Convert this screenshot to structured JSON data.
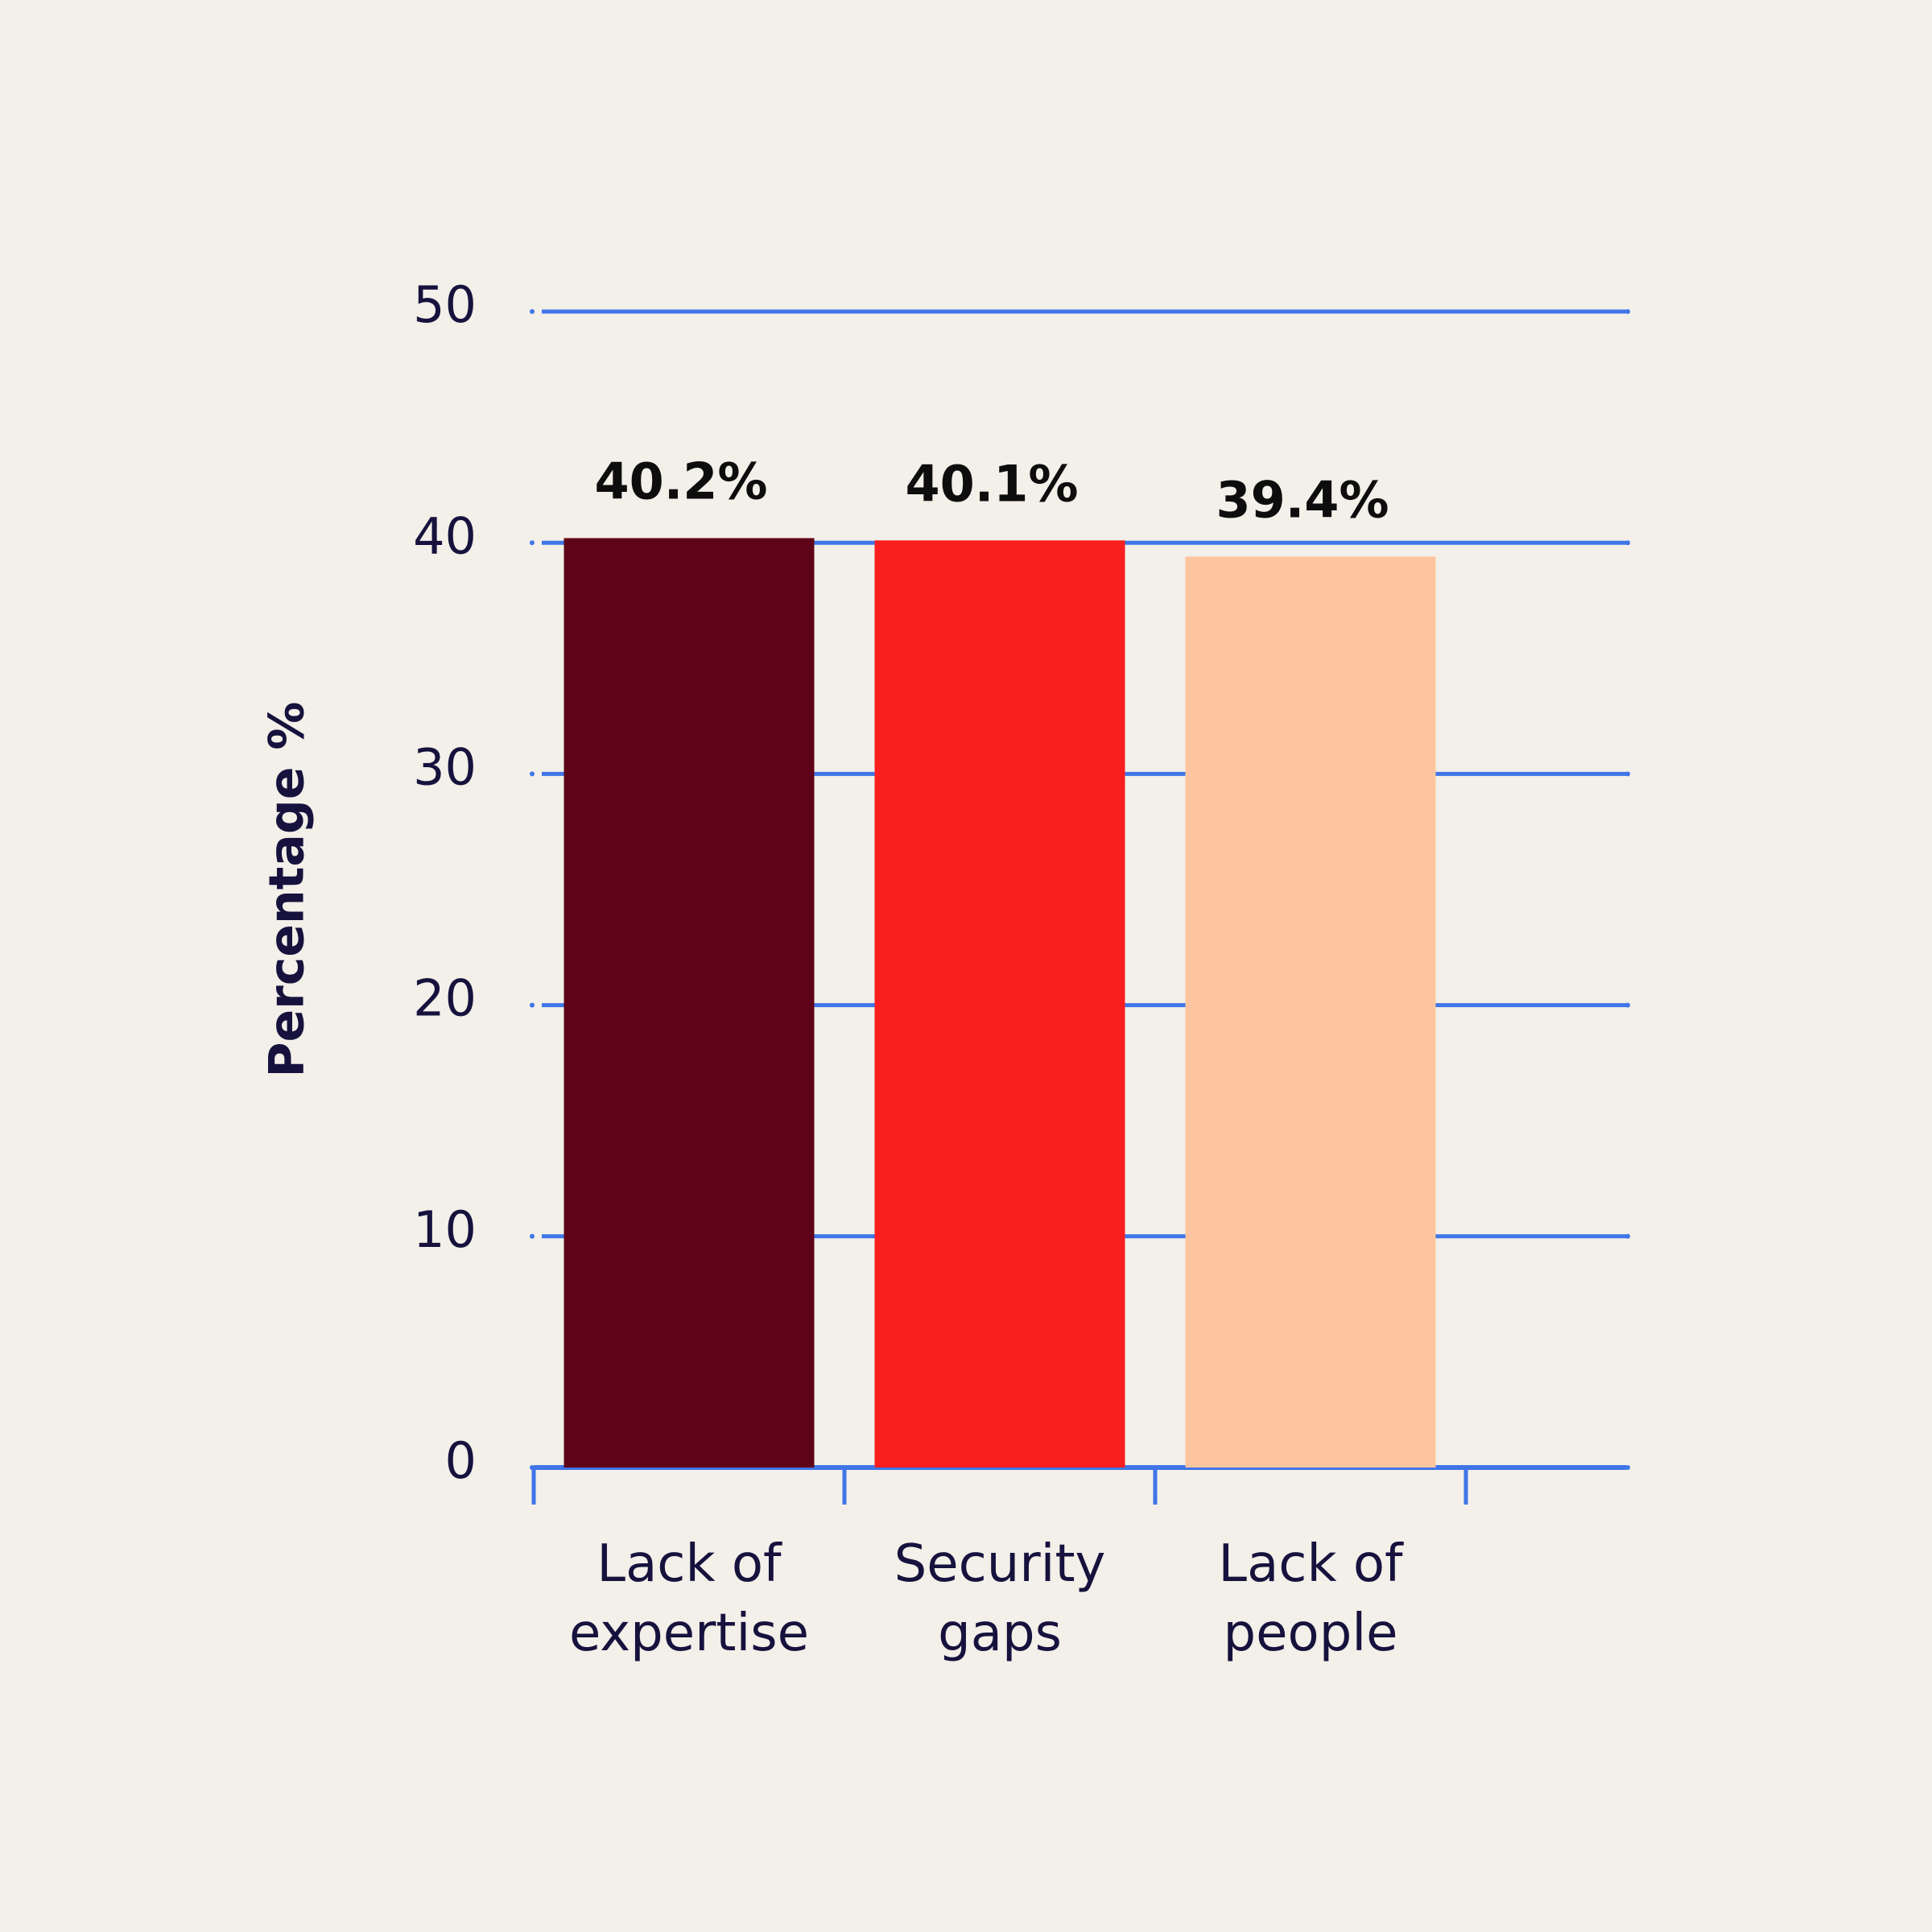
{
  "chart_data": {
    "type": "bar",
    "y_label": "Percentage %",
    "categories": [
      "Lack of expertise",
      "Security gaps",
      "Lack of people"
    ],
    "values": [
      40.2,
      40.1,
      39.4
    ],
    "value_labels": [
      "40.2%",
      "40.1%",
      "39.4%"
    ],
    "colors": [
      "#5f0418",
      "#f91e1f",
      "#fdc59f"
    ],
    "ylim": [
      0,
      50
    ],
    "yticks": [
      0,
      10,
      20,
      30,
      40,
      50
    ],
    "grid": true,
    "grid_color": "#3f75e8"
  }
}
